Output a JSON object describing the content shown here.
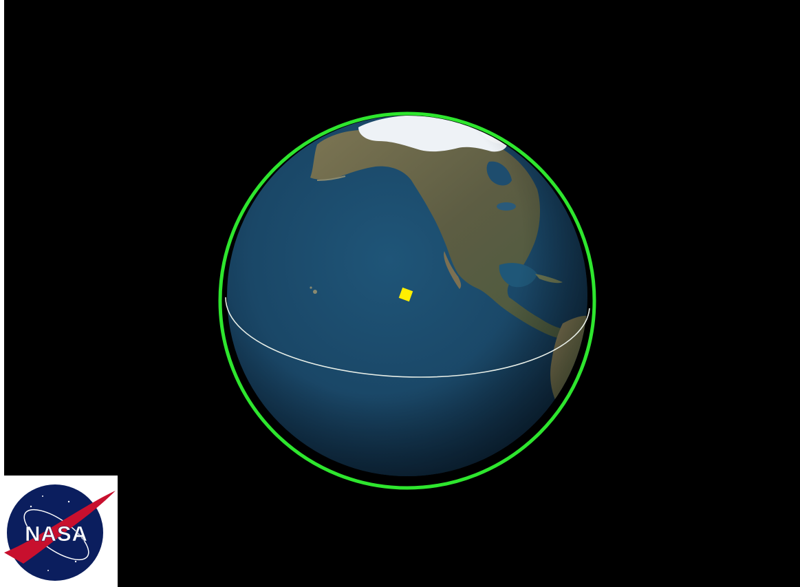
{
  "scene": {
    "view": "globe",
    "visible_region": "north-pacific-and-north-america",
    "background_color": "#000000",
    "ocean_color": "#1b4a6b",
    "land_color": "#6e6a4c",
    "ice_color": "#f2f4f7",
    "horizon_ring": {
      "color": "#2ee62e",
      "icon": "horizon-ring"
    },
    "equator_line": {
      "color": "#e8efe8",
      "icon": "orbit-track-line"
    },
    "satellite_marker": {
      "color": "#ffee00",
      "icon": "yellow-square-marker"
    }
  },
  "logo": {
    "text": "NASA",
    "icon": "nasa-meatball-logo",
    "colors": {
      "disc": "#0b1e5e",
      "vector": "#c8102e",
      "text": "#ffffff"
    }
  }
}
